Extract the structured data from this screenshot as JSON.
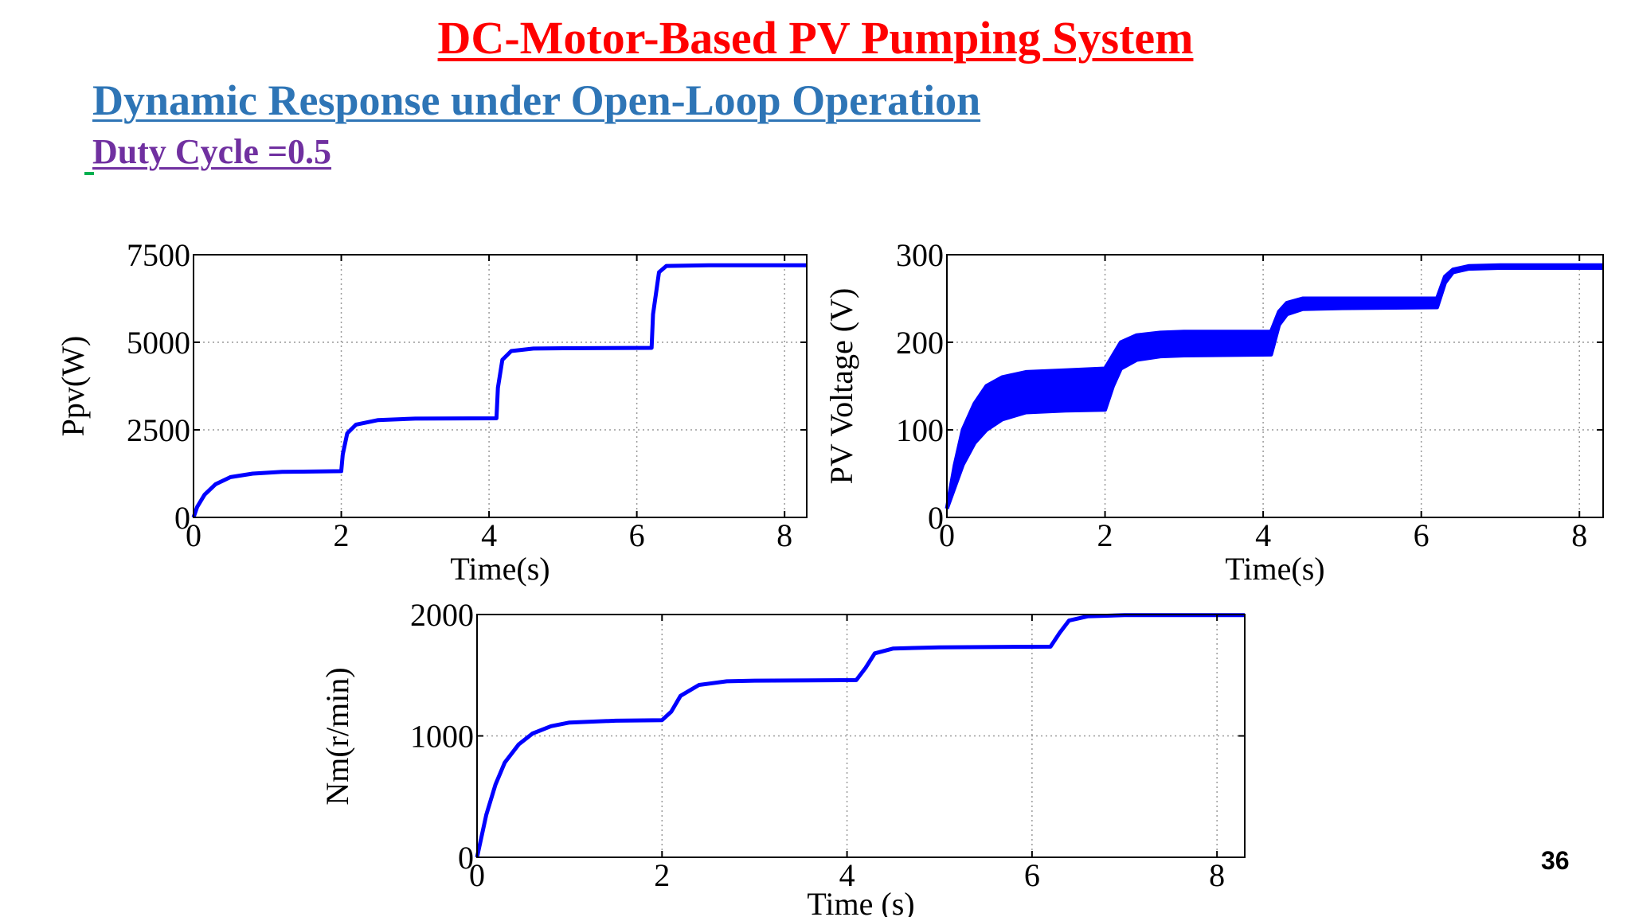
{
  "slide": {
    "title": "DC-Motor-Based PV Pumping System",
    "subtitle": "Dynamic Response under Open-Loop Operation",
    "duty_cycle": "Duty Cycle =0.5",
    "page_number": "36"
  },
  "colors": {
    "title": "#ff0000",
    "subtitle": "#2e75b6",
    "duty": "#7030a0",
    "series": "#0000ff",
    "grid": "#9a9a9a"
  },
  "chart_data": [
    {
      "type": "line",
      "title": "",
      "xlabel": "Time(s)",
      "ylabel": "Ppv(W)",
      "xlim": [
        0,
        8.3
      ],
      "ylim": [
        0,
        7500
      ],
      "xticks": [
        0,
        2,
        4,
        6,
        8
      ],
      "yticks": [
        0,
        2500,
        5000,
        7500
      ],
      "grid": true,
      "series": [
        {
          "x": [
            0,
            0.05,
            0.15,
            0.3,
            0.5,
            0.8,
            1.2,
            2.0,
            2.02,
            2.08,
            2.2,
            2.5,
            3.0,
            4.1,
            4.12,
            4.18,
            4.3,
            4.6,
            5.0,
            6.2,
            6.22,
            6.3,
            6.4,
            7.0,
            8.3
          ],
          "y": [
            0,
            300,
            650,
            950,
            1150,
            1250,
            1300,
            1320,
            1800,
            2400,
            2650,
            2780,
            2820,
            2830,
            3700,
            4500,
            4750,
            4820,
            4830,
            4840,
            5800,
            7000,
            7180,
            7200,
            7200
          ]
        }
      ]
    },
    {
      "type": "line",
      "title": "",
      "xlabel": "Time(s)",
      "ylabel": "PV Voltage (V)",
      "xlim": [
        0,
        8.3
      ],
      "ylim": [
        0,
        300
      ],
      "xticks": [
        0,
        2,
        4,
        6,
        8
      ],
      "yticks": [
        0,
        100,
        200,
        300
      ],
      "grid": true,
      "series": [
        {
          "name": "",
          "x": [
            0,
            0.1,
            0.2,
            0.35,
            0.5,
            0.7,
            1.0,
            1.5,
            2.0,
            2.1,
            2.2,
            2.4,
            2.7,
            3.0,
            4.1,
            4.2,
            4.3,
            4.5,
            5.0,
            6.2,
            6.3,
            6.4,
            6.6,
            7.0,
            8.3
          ],
          "y": [
            10,
            60,
            100,
            130,
            150,
            160,
            166,
            168,
            170,
            185,
            200,
            208,
            211,
            212,
            212,
            235,
            245,
            250,
            250,
            250,
            275,
            283,
            287,
            288,
            288
          ]
        },
        {
          "name": "",
          "x": [
            0,
            0.1,
            0.2,
            0.35,
            0.5,
            0.7,
            1.0,
            1.5,
            2.0,
            2.1,
            2.2,
            2.4,
            2.7,
            3.0,
            4.1,
            4.2,
            4.3,
            4.5,
            5.0,
            6.2,
            6.3,
            6.4,
            6.6,
            7.0,
            8.3
          ],
          "y": [
            10,
            35,
            60,
            85,
            100,
            112,
            120,
            122,
            123,
            150,
            170,
            180,
            184,
            185,
            186,
            220,
            232,
            238,
            239,
            240,
            268,
            280,
            284,
            285,
            285
          ]
        }
      ]
    },
    {
      "type": "line",
      "title": "",
      "xlabel": "Time (s)",
      "ylabel": "Nm(r/min)",
      "xlim": [
        0,
        8.3
      ],
      "ylim": [
        0,
        2000
      ],
      "xticks": [
        0,
        2,
        4,
        6,
        8
      ],
      "yticks": [
        0,
        1000,
        2000
      ],
      "grid": true,
      "series": [
        {
          "x": [
            0,
            0.1,
            0.2,
            0.3,
            0.45,
            0.6,
            0.8,
            1.0,
            1.5,
            2.0,
            2.1,
            2.2,
            2.4,
            2.7,
            3.0,
            4.1,
            4.2,
            4.3,
            4.5,
            5.0,
            6.2,
            6.3,
            6.4,
            6.6,
            7.0,
            8.3
          ],
          "y": [
            0,
            350,
            600,
            780,
            930,
            1020,
            1080,
            1110,
            1125,
            1130,
            1200,
            1330,
            1420,
            1450,
            1455,
            1460,
            1560,
            1680,
            1720,
            1730,
            1735,
            1850,
            1950,
            1985,
            1995,
            1995
          ]
        }
      ]
    }
  ]
}
